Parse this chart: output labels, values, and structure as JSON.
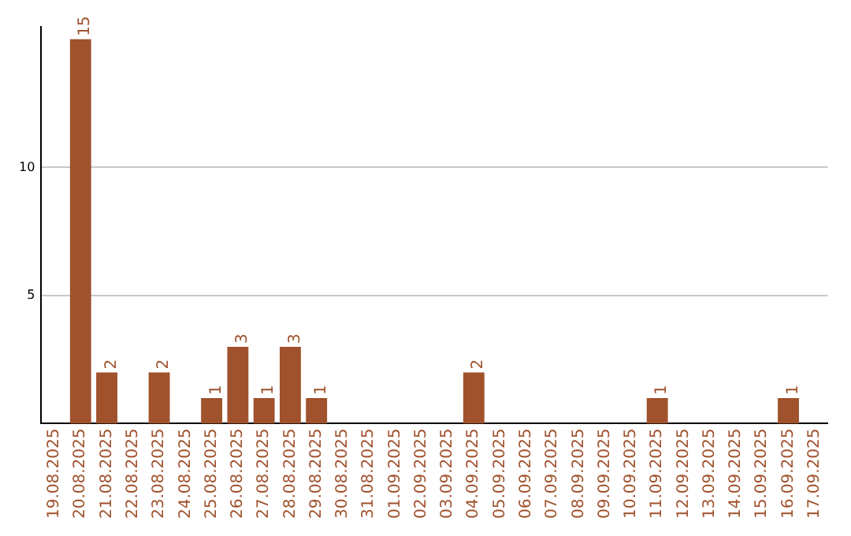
{
  "chart_data": {
    "type": "bar",
    "categories": [
      "19.08.2025",
      "20.08.2025",
      "21.08.2025",
      "22.08.2025",
      "23.08.2025",
      "24.08.2025",
      "25.08.2025",
      "26.08.2025",
      "27.08.2025",
      "28.08.2025",
      "29.08.2025",
      "30.08.2025",
      "31.08.2025",
      "01.09.2025",
      "02.09.2025",
      "03.09.2025",
      "04.09.2025",
      "05.09.2025",
      "06.09.2025",
      "07.09.2025",
      "08.09.2025",
      "09.09.2025",
      "10.09.2025",
      "11.09.2025",
      "12.09.2025",
      "13.09.2025",
      "14.09.2025",
      "15.09.2025",
      "16.09.2025",
      "17.09.2025"
    ],
    "values": [
      0,
      15,
      2,
      0,
      2,
      0,
      1,
      3,
      1,
      3,
      1,
      0,
      0,
      0,
      0,
      0,
      2,
      0,
      0,
      0,
      0,
      0,
      0,
      1,
      0,
      0,
      0,
      0,
      1,
      0
    ],
    "value_labels": [
      null,
      "15",
      "2",
      null,
      "2",
      null,
      "1",
      "3",
      "1",
      "3",
      "1",
      null,
      null,
      null,
      null,
      null,
      "2",
      null,
      null,
      null,
      null,
      null,
      null,
      "1",
      null,
      null,
      null,
      null,
      "1",
      null
    ],
    "color": "#a0522d",
    "ylim": [
      0,
      15.5
    ],
    "yticks": [
      5,
      10
    ],
    "grid": "y",
    "legend": false
  }
}
